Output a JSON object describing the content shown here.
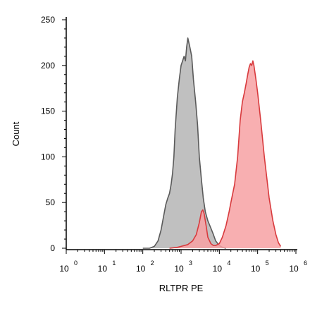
{
  "chart_data": {
    "type": "area",
    "xlabel": "RLTPR PE",
    "ylabel": "Count",
    "x_scale": "log",
    "xlim": [
      1,
      1000000
    ],
    "ylim": [
      0,
      250
    ],
    "y_ticks": [
      {
        "value": 0,
        "label": "0"
      },
      {
        "value": 50,
        "label": "50"
      },
      {
        "value": 100,
        "label": "100"
      },
      {
        "value": 150,
        "label": "150"
      },
      {
        "value": 200,
        "label": "200"
      },
      {
        "value": 250,
        "label": "250"
      }
    ],
    "x_ticks": [
      {
        "value": 1,
        "base": "10",
        "exp": "0"
      },
      {
        "value": 10,
        "base": "10",
        "exp": "1"
      },
      {
        "value": 100,
        "base": "10",
        "exp": "2"
      },
      {
        "value": 1000,
        "base": "10",
        "exp": "3"
      },
      {
        "value": 10000,
        "base": "10",
        "exp": "4"
      },
      {
        "value": 100000,
        "base": "10",
        "exp": "5"
      },
      {
        "value": 1000000,
        "base": "10",
        "exp": "6"
      }
    ],
    "series": [
      {
        "fill": "#c0c0c0",
        "stroke": "#5a5a5a",
        "x": [
          100,
          150,
          200,
          250,
          300,
          350,
          400,
          450,
          500,
          550,
          600,
          650,
          700,
          800,
          900,
          1000,
          1100,
          1200,
          1300,
          1400,
          1500,
          1700,
          1900,
          2100,
          2400,
          2700,
          3000,
          3400,
          3800,
          4300,
          5000,
          6000,
          7000,
          8000,
          10000,
          12000,
          15000
        ],
        "y": [
          0,
          0,
          2,
          8,
          20,
          35,
          48,
          55,
          60,
          70,
          82,
          100,
          130,
          165,
          185,
          200,
          205,
          210,
          205,
          220,
          230,
          220,
          210,
          185,
          160,
          135,
          100,
          75,
          55,
          40,
          30,
          22,
          15,
          8,
          3,
          1,
          0
        ]
      },
      {
        "fill": "#f7a1a3",
        "stroke": "#d83a3d",
        "x": [
          500,
          800,
          1000,
          1500,
          2000,
          2500,
          3000,
          3400,
          3700,
          4000,
          4500,
          5000,
          6000,
          7000,
          8000,
          10000,
          12000,
          15000,
          18000,
          20000,
          25000,
          30000,
          35000,
          40000,
          45000,
          50000,
          55000,
          60000,
          65000,
          70000,
          75000,
          80000,
          90000,
          100000,
          120000,
          150000,
          200000,
          250000,
          300000,
          350000,
          400000
        ],
        "y": [
          0,
          1,
          2,
          4,
          8,
          15,
          28,
          40,
          42,
          38,
          25,
          12,
          5,
          3,
          3,
          5,
          12,
          25,
          40,
          50,
          70,
          100,
          140,
          160,
          170,
          180,
          190,
          198,
          202,
          200,
          205,
          200,
          185,
          170,
          140,
          100,
          55,
          30,
          15,
          6,
          2
        ]
      }
    ]
  }
}
